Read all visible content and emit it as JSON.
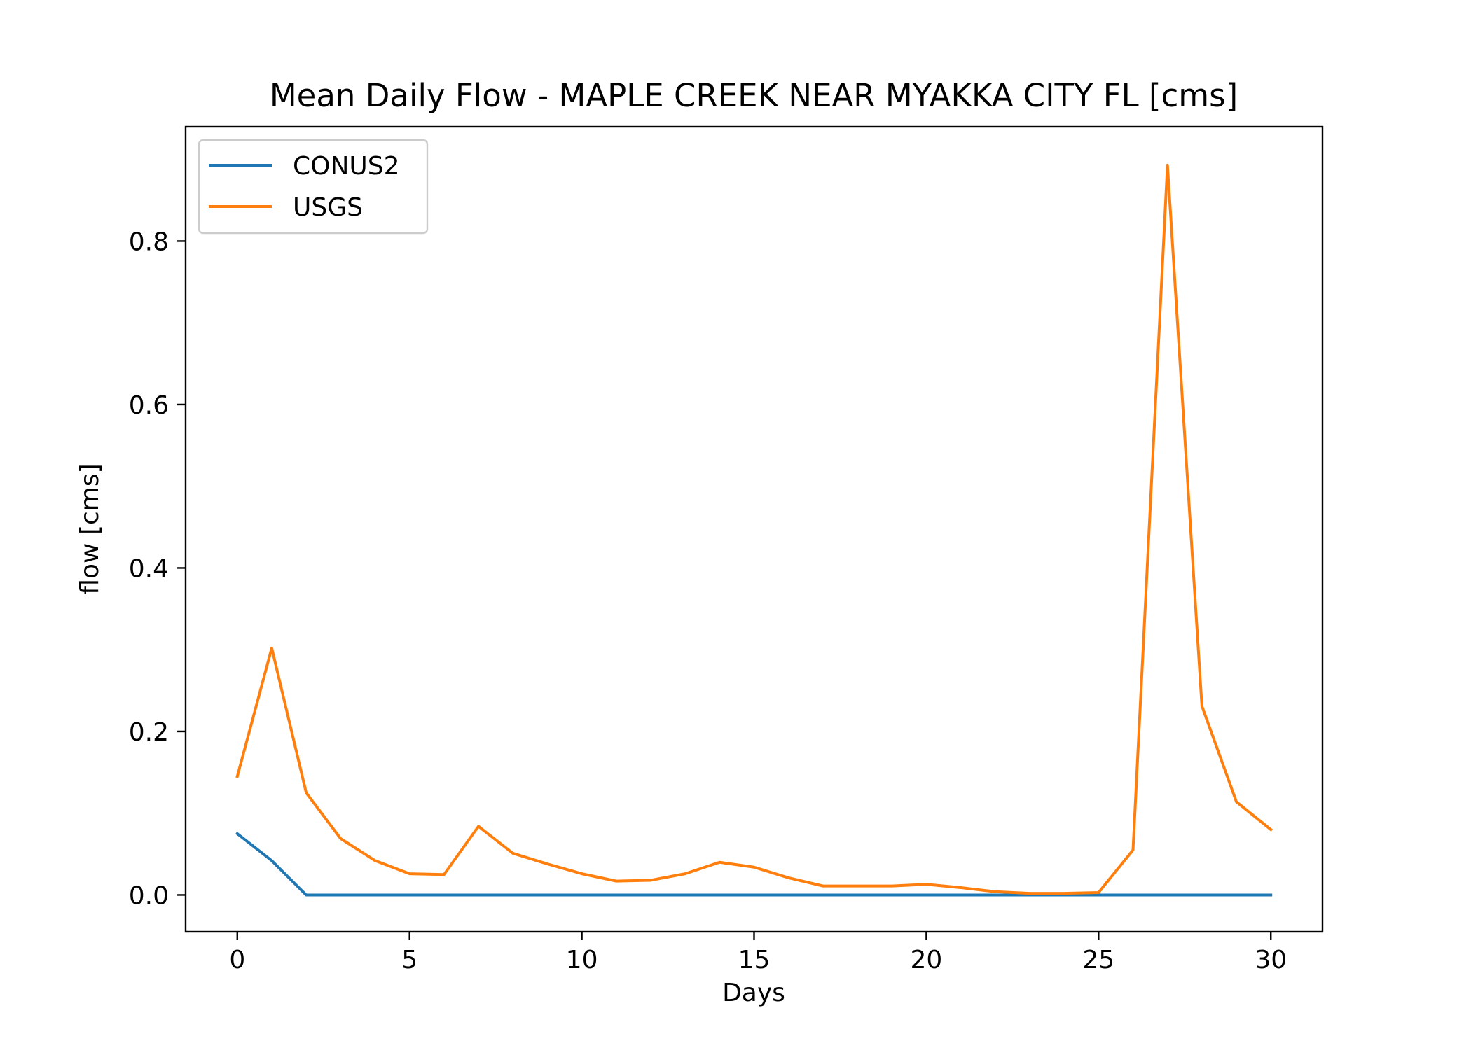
{
  "chart_data": {
    "type": "line",
    "title": "Mean Daily Flow - MAPLE CREEK NEAR MYAKKA CITY FL [cms]",
    "xlabel": "Days",
    "ylabel": "flow [cms]",
    "xlim": [
      -1.5,
      31.5
    ],
    "ylim": [
      -0.045,
      0.94
    ],
    "xticks": [
      0,
      5,
      10,
      15,
      20,
      25,
      30
    ],
    "xtick_labels": [
      "0",
      "5",
      "10",
      "15",
      "20",
      "25",
      "30"
    ],
    "yticks": [
      0.0,
      0.2,
      0.4,
      0.6,
      0.8
    ],
    "ytick_labels": [
      "0.0",
      "0.2",
      "0.4",
      "0.6",
      "0.8"
    ],
    "grid": false,
    "legend_position": "top-left",
    "x": [
      0,
      1,
      2,
      3,
      4,
      5,
      6,
      7,
      8,
      9,
      10,
      11,
      12,
      13,
      14,
      15,
      16,
      17,
      18,
      19,
      20,
      21,
      22,
      23,
      24,
      25,
      26,
      27,
      28,
      29,
      30
    ],
    "series": [
      {
        "name": "CONUS2",
        "color": "#1f77b4",
        "values": [
          0.075,
          0.042,
          0.0,
          0.0,
          0.0,
          0.0,
          0.0,
          0.0,
          0.0,
          0.0,
          0.0,
          0.0,
          0.0,
          0.0,
          0.0,
          0.0,
          0.0,
          0.0,
          0.0,
          0.0,
          0.0,
          0.0,
          0.0,
          0.0,
          0.0,
          0.0,
          0.0,
          0.0,
          0.0,
          0.0,
          0.0
        ]
      },
      {
        "name": "USGS",
        "color": "#ff7f0e",
        "values": [
          0.145,
          0.302,
          0.125,
          0.069,
          0.042,
          0.026,
          0.025,
          0.084,
          0.051,
          0.038,
          0.026,
          0.017,
          0.018,
          0.026,
          0.04,
          0.034,
          0.021,
          0.011,
          0.011,
          0.011,
          0.013,
          0.009,
          0.004,
          0.002,
          0.002,
          0.003,
          0.055,
          0.893,
          0.231,
          0.114,
          0.08
        ]
      }
    ]
  }
}
